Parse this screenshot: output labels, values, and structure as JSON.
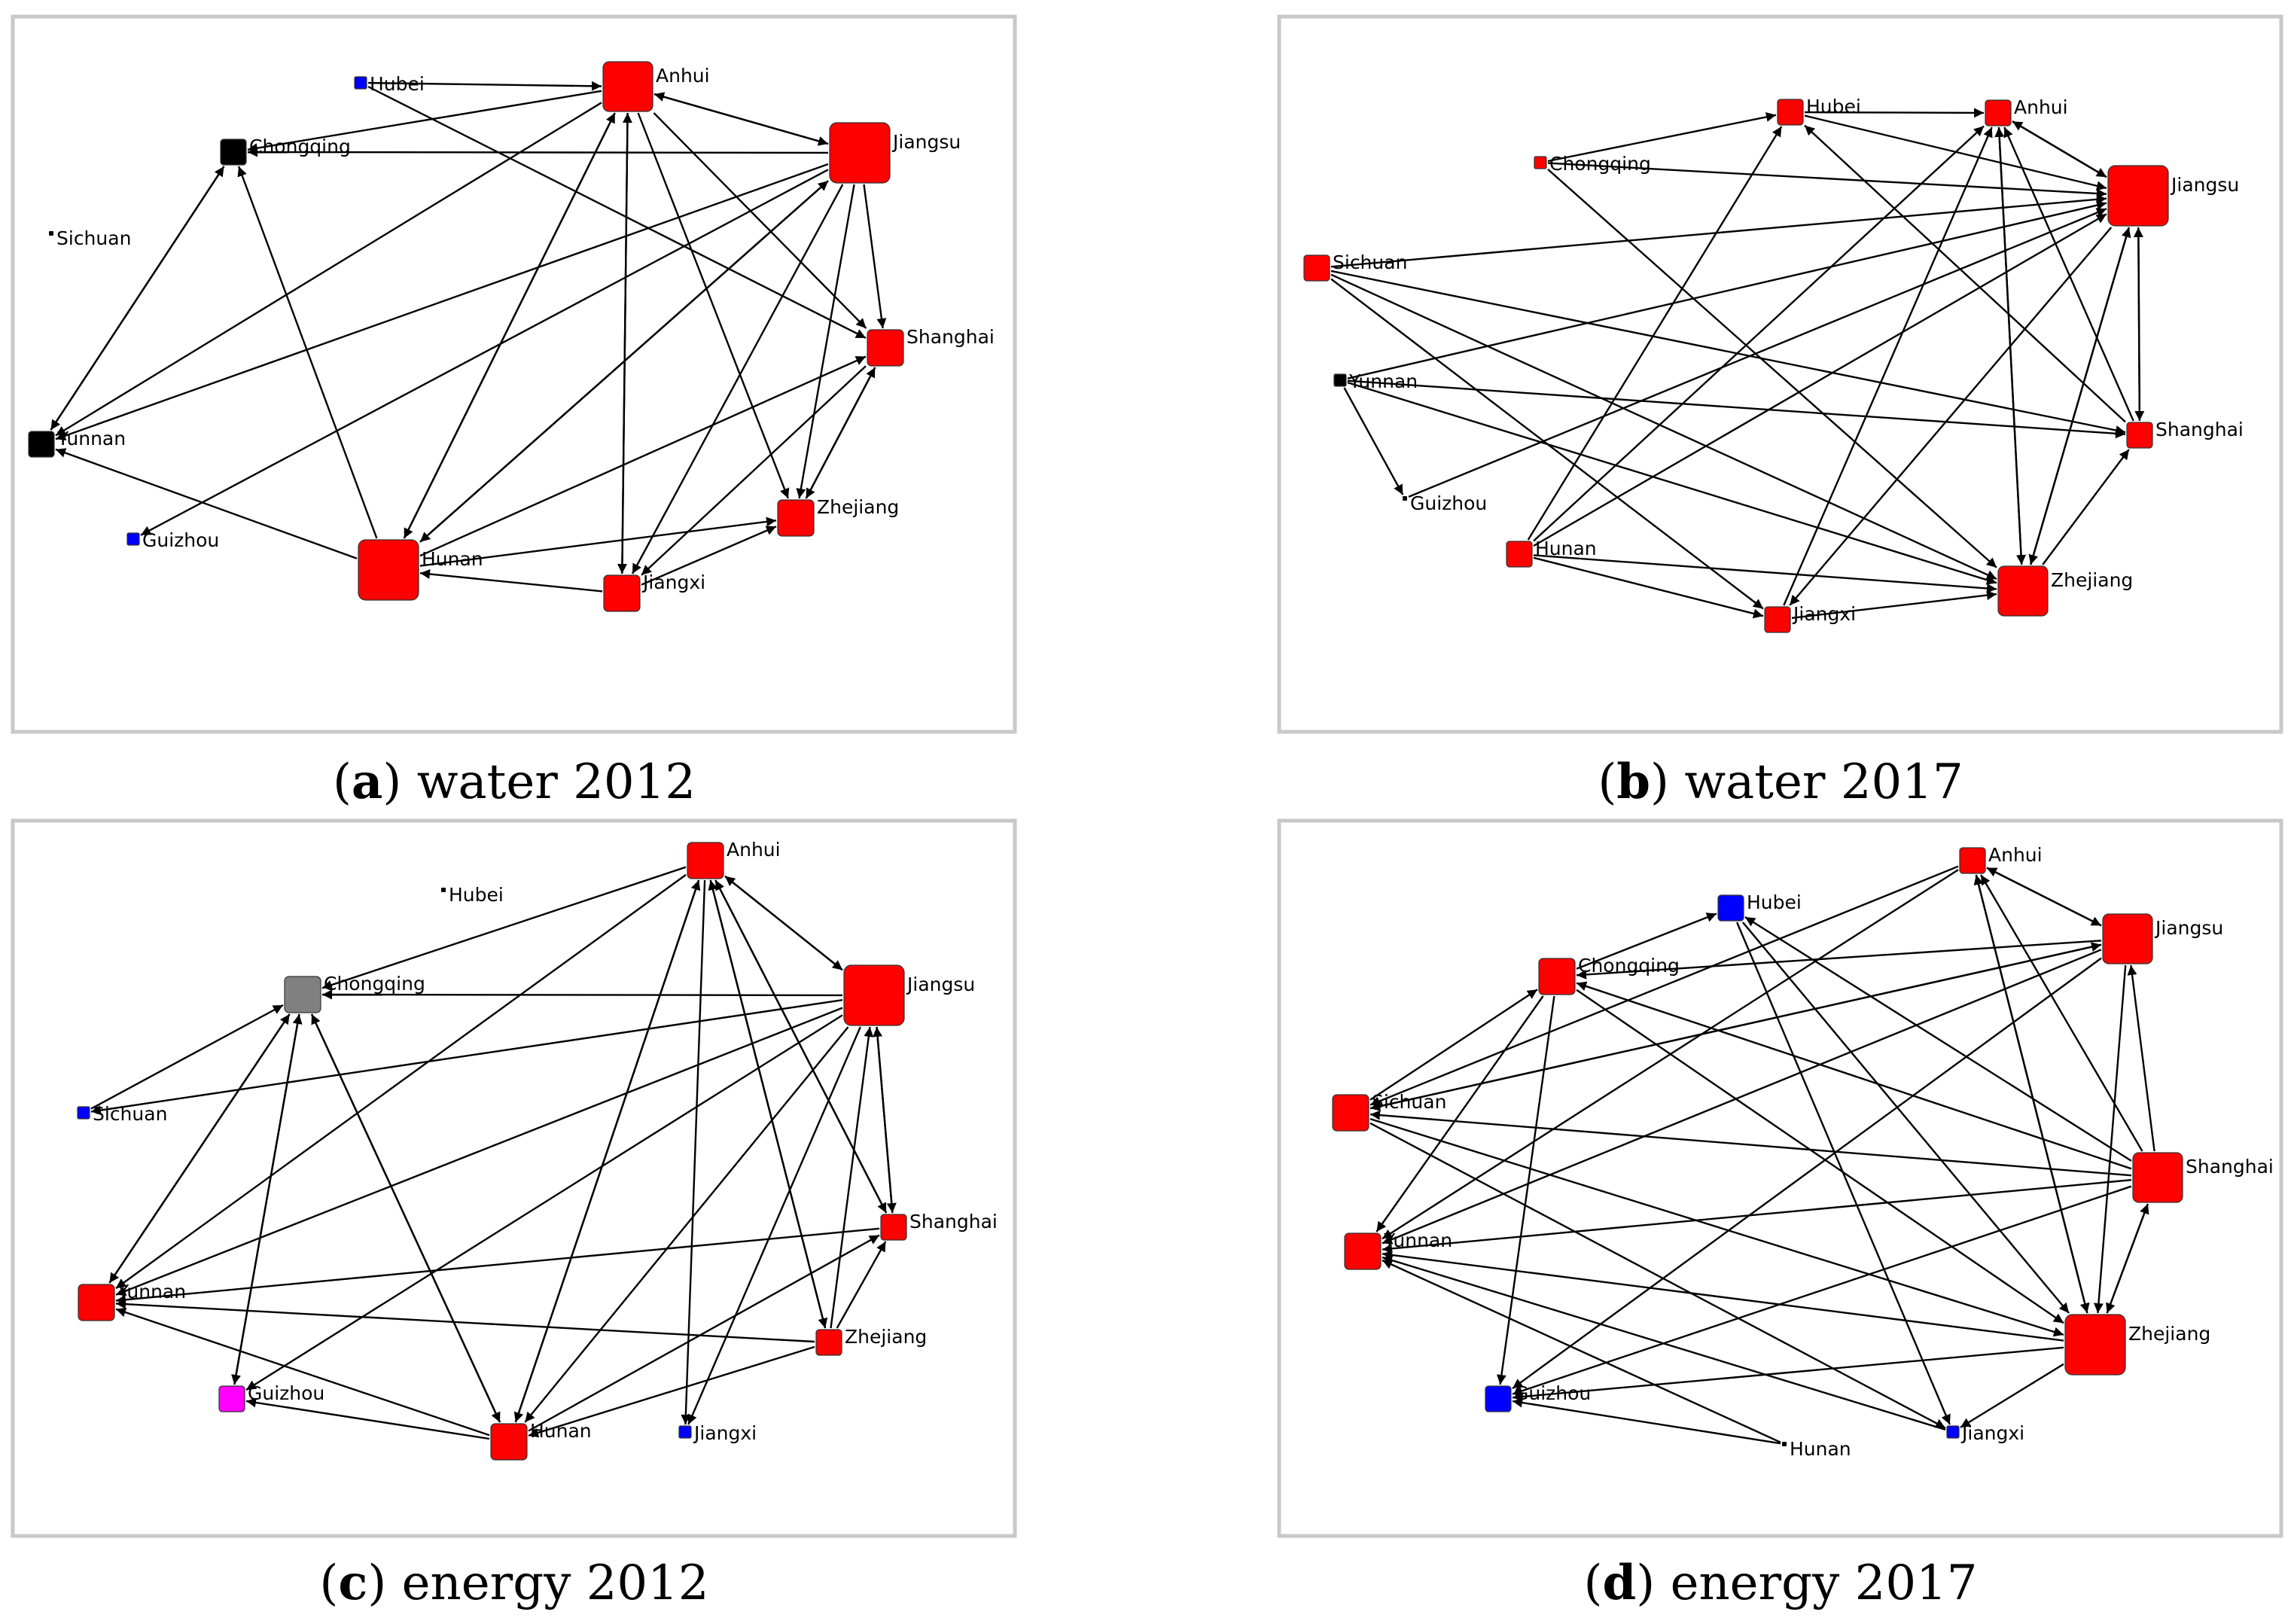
{
  "panels": [
    {
      "letter": "a",
      "caption": "water 2012",
      "nodes": [
        {
          "id": "Anhui",
          "label": "Anhui",
          "color": "#ff0000",
          "size": "L"
        },
        {
          "id": "Jiangsu",
          "label": "Jiangsu",
          "color": "#ff0000",
          "size": "XL"
        },
        {
          "id": "Shanghai",
          "label": "Shanghai",
          "color": "#ff0000",
          "size": "M"
        },
        {
          "id": "Zhejiang",
          "label": "Zhejiang",
          "color": "#ff0000",
          "size": "M"
        },
        {
          "id": "Jiangxi",
          "label": "Jiangxi",
          "color": "#ff0000",
          "size": "M"
        },
        {
          "id": "Hunan",
          "label": "Hunan",
          "color": "#ff0000",
          "size": "XL"
        },
        {
          "id": "Guizhou",
          "label": "Guizhou",
          "color": "#0000ff",
          "size": "XS"
        },
        {
          "id": "Yunnan",
          "label": "Yunnan",
          "color": "#000000",
          "size": "S"
        },
        {
          "id": "Sichuan",
          "label": "Sichuan",
          "color": "#000000",
          "size": "XXS"
        },
        {
          "id": "Chongqing",
          "label": "Chongqing",
          "color": "#000000",
          "size": "S"
        },
        {
          "id": "Hubei",
          "label": "Hubei",
          "color": "#0000ff",
          "size": "XS"
        }
      ],
      "edges": [
        [
          "Hubei",
          "Anhui"
        ],
        [
          "Hubei",
          "Shanghai"
        ],
        [
          "Anhui",
          "Jiangsu"
        ],
        [
          "Jiangsu",
          "Anhui"
        ],
        [
          "Jiangsu",
          "Chongqing"
        ],
        [
          "Anhui",
          "Chongqing"
        ],
        [
          "Anhui",
          "Jiangxi"
        ],
        [
          "Jiangxi",
          "Anhui"
        ],
        [
          "Anhui",
          "Hunan"
        ],
        [
          "Hunan",
          "Anhui"
        ],
        [
          "Anhui",
          "Shanghai"
        ],
        [
          "Anhui",
          "Zhejiang"
        ],
        [
          "Anhui",
          "Yunnan"
        ],
        [
          "Jiangsu",
          "Shanghai"
        ],
        [
          "Jiangsu",
          "Zhejiang"
        ],
        [
          "Jiangsu",
          "Hunan"
        ],
        [
          "Hunan",
          "Jiangsu"
        ],
        [
          "Jiangsu",
          "Yunnan"
        ],
        [
          "Jiangsu",
          "Guizhou"
        ],
        [
          "Jiangsu",
          "Jiangxi"
        ],
        [
          "Shanghai",
          "Jiangxi"
        ],
        [
          "Zhejiang",
          "Shanghai"
        ],
        [
          "Hunan",
          "Zhejiang"
        ],
        [
          "Hunan",
          "Shanghai"
        ],
        [
          "Jiangxi",
          "Zhejiang"
        ],
        [
          "Jiangxi",
          "Hunan"
        ],
        [
          "Hunan",
          "Yunnan"
        ],
        [
          "Hunan",
          "Chongqing"
        ],
        [
          "Yunnan",
          "Chongqing"
        ],
        [
          "Chongqing",
          "Yunnan"
        ],
        [
          "Shanghai",
          "Zhejiang"
        ]
      ]
    },
    {
      "letter": "b",
      "caption": "water 2017",
      "nodes": [
        {
          "id": "Anhui",
          "label": "Anhui",
          "color": "#ff0000",
          "size": "S"
        },
        {
          "id": "Jiangsu",
          "label": "Jiangsu",
          "color": "#ff0000",
          "size": "XL"
        },
        {
          "id": "Shanghai",
          "label": "Shanghai",
          "color": "#ff0000",
          "size": "S"
        },
        {
          "id": "Zhejiang",
          "label": "Zhejiang",
          "color": "#ff0000",
          "size": "L"
        },
        {
          "id": "Jiangxi",
          "label": "Jiangxi",
          "color": "#ff0000",
          "size": "S"
        },
        {
          "id": "Hunan",
          "label": "Hunan",
          "color": "#ff0000",
          "size": "S"
        },
        {
          "id": "Guizhou",
          "label": "Guizhou",
          "color": "#000000",
          "size": "XXS"
        },
        {
          "id": "Yunnan",
          "label": "Yunnan",
          "color": "#000000",
          "size": "XS"
        },
        {
          "id": "Sichuan",
          "label": "Sichuan",
          "color": "#ff0000",
          "size": "S"
        },
        {
          "id": "Chongqing",
          "label": "Chongqing",
          "color": "#ff0000",
          "size": "XS"
        },
        {
          "id": "Hubei",
          "label": "Hubei",
          "color": "#ff0000",
          "size": "S"
        }
      ],
      "edges": [
        [
          "Hubei",
          "Anhui"
        ],
        [
          "Chongqing",
          "Hubei"
        ],
        [
          "Chongqing",
          "Jiangsu"
        ],
        [
          "Chongqing",
          "Zhejiang"
        ],
        [
          "Hubei",
          "Jiangsu"
        ],
        [
          "Anhui",
          "Jiangsu"
        ],
        [
          "Jiangsu",
          "Anhui"
        ],
        [
          "Sichuan",
          "Jiangsu"
        ],
        [
          "Sichuan",
          "Zhejiang"
        ],
        [
          "Sichuan",
          "Jiangxi"
        ],
        [
          "Sichuan",
          "Shanghai"
        ],
        [
          "Yunnan",
          "Guizhou"
        ],
        [
          "Yunnan",
          "Jiangsu"
        ],
        [
          "Yunnan",
          "Zhejiang"
        ],
        [
          "Yunnan",
          "Shanghai"
        ],
        [
          "Hunan",
          "Hubei"
        ],
        [
          "Hunan",
          "Anhui"
        ],
        [
          "Hunan",
          "Jiangsu"
        ],
        [
          "Hunan",
          "Zhejiang"
        ],
        [
          "Hunan",
          "Jiangxi"
        ],
        [
          "Jiangxi",
          "Zhejiang"
        ],
        [
          "Jiangxi",
          "Anhui"
        ],
        [
          "Jiangsu",
          "Jiangxi"
        ],
        [
          "Anhui",
          "Zhejiang"
        ],
        [
          "Zhejiang",
          "Anhui"
        ],
        [
          "Shanghai",
          "Anhui"
        ],
        [
          "Shanghai",
          "Hubei"
        ],
        [
          "Jiangsu",
          "Shanghai"
        ],
        [
          "Shanghai",
          "Jiangsu"
        ],
        [
          "Zhejiang",
          "Shanghai"
        ],
        [
          "Zhejiang",
          "Jiangsu"
        ],
        [
          "Jiangsu",
          "Zhejiang"
        ],
        [
          "Guizhou",
          "Jiangsu"
        ]
      ]
    },
    {
      "letter": "c",
      "caption": "energy 2012",
      "nodes": [
        {
          "id": "Anhui",
          "label": "Anhui",
          "color": "#ff0000",
          "size": "M"
        },
        {
          "id": "Jiangsu",
          "label": "Jiangsu",
          "color": "#ff0000",
          "size": "XL"
        },
        {
          "id": "Shanghai",
          "label": "Shanghai",
          "color": "#ff0000",
          "size": "S"
        },
        {
          "id": "Zhejiang",
          "label": "Zhejiang",
          "color": "#ff0000",
          "size": "S"
        },
        {
          "id": "Jiangxi",
          "label": "Jiangxi",
          "color": "#0000ff",
          "size": "XS"
        },
        {
          "id": "Hunan",
          "label": "Hunan",
          "color": "#ff0000",
          "size": "M"
        },
        {
          "id": "Guizhou",
          "label": "Guizhou",
          "color": "#ff00ff",
          "size": "S"
        },
        {
          "id": "Yunnan",
          "label": "Yunnan",
          "color": "#ff0000",
          "size": "M"
        },
        {
          "id": "Sichuan",
          "label": "Sichuan",
          "color": "#0000ff",
          "size": "XS"
        },
        {
          "id": "Chongqing",
          "label": "Chongqing",
          "color": "#808080",
          "size": "M"
        },
        {
          "id": "Hubei",
          "label": "Hubei",
          "color": "#000000",
          "size": "XXS"
        }
      ],
      "edges": [
        [
          "Anhui",
          "Chongqing"
        ],
        [
          "Anhui",
          "Jiangsu"
        ],
        [
          "Jiangsu",
          "Anhui"
        ],
        [
          "Jiangsu",
          "Chongqing"
        ],
        [
          "Sichuan",
          "Chongqing"
        ],
        [
          "Chongqing",
          "Yunnan"
        ],
        [
          "Yunnan",
          "Chongqing"
        ],
        [
          "Chongqing",
          "Guizhou"
        ],
        [
          "Guizhou",
          "Chongqing"
        ],
        [
          "Chongqing",
          "Hunan"
        ],
        [
          "Hunan",
          "Chongqing"
        ],
        [
          "Anhui",
          "Yunnan"
        ],
        [
          "Anhui",
          "Hunan"
        ],
        [
          "Hunan",
          "Anhui"
        ],
        [
          "Anhui",
          "Jiangxi"
        ],
        [
          "Anhui",
          "Zhejiang"
        ],
        [
          "Zhejiang",
          "Anhui"
        ],
        [
          "Anhui",
          "Shanghai"
        ],
        [
          "Shanghai",
          "Anhui"
        ],
        [
          "Jiangsu",
          "Sichuan"
        ],
        [
          "Jiangsu",
          "Yunnan"
        ],
        [
          "Jiangsu",
          "Guizhou"
        ],
        [
          "Jiangsu",
          "Hunan"
        ],
        [
          "Jiangsu",
          "Jiangxi"
        ],
        [
          "Jiangsu",
          "Shanghai"
        ],
        [
          "Shanghai",
          "Jiangsu"
        ],
        [
          "Zhejiang",
          "Jiangsu"
        ],
        [
          "Shanghai",
          "Yunnan"
        ],
        [
          "Zhejiang",
          "Yunnan"
        ],
        [
          "Zhejiang",
          "Shanghai"
        ],
        [
          "Hunan",
          "Shanghai"
        ],
        [
          "Hunan",
          "Guizhou"
        ],
        [
          "Hunan",
          "Yunnan"
        ],
        [
          "Zhejiang",
          "Hunan"
        ]
      ]
    },
    {
      "letter": "d",
      "caption": "energy 2017",
      "nodes": [
        {
          "id": "Anhui",
          "label": "Anhui",
          "color": "#ff0000",
          "size": "S"
        },
        {
          "id": "Jiangsu",
          "label": "Jiangsu",
          "color": "#ff0000",
          "size": "L"
        },
        {
          "id": "Shanghai",
          "label": "Shanghai",
          "color": "#ff0000",
          "size": "L"
        },
        {
          "id": "Zhejiang",
          "label": "Zhejiang",
          "color": "#ff0000",
          "size": "XL"
        },
        {
          "id": "Jiangxi",
          "label": "Jiangxi",
          "color": "#0000ff",
          "size": "XS"
        },
        {
          "id": "Hunan",
          "label": "Hunan",
          "color": "#000000",
          "size": "XXS"
        },
        {
          "id": "Guizhou",
          "label": "Guizhou",
          "color": "#0000ff",
          "size": "S"
        },
        {
          "id": "Yunnan",
          "label": "Yunnan",
          "color": "#ff0000",
          "size": "M"
        },
        {
          "id": "Sichuan",
          "label": "Sichuan",
          "color": "#ff0000",
          "size": "M"
        },
        {
          "id": "Chongqing",
          "label": "Chongqing",
          "color": "#ff0000",
          "size": "M"
        },
        {
          "id": "Hubei",
          "label": "Hubei",
          "color": "#0000ff",
          "size": "S"
        }
      ],
      "edges": [
        [
          "Chongqing",
          "Hubei"
        ],
        [
          "Hubei",
          "Zhejiang"
        ],
        [
          "Hubei",
          "Jiangxi"
        ],
        [
          "Anhui",
          "Jiangsu"
        ],
        [
          "Jiangsu",
          "Anhui"
        ],
        [
          "Anhui",
          "Sichuan"
        ],
        [
          "Anhui",
          "Yunnan"
        ],
        [
          "Anhui",
          "Zhejiang"
        ],
        [
          "Zhejiang",
          "Anhui"
        ],
        [
          "Shanghai",
          "Anhui"
        ],
        [
          "Jiangsu",
          "Chongqing"
        ],
        [
          "Jiangsu",
          "Sichuan"
        ],
        [
          "Jiangsu",
          "Yunnan"
        ],
        [
          "Jiangsu",
          "Guizhou"
        ],
        [
          "Jiangsu",
          "Zhejiang"
        ],
        [
          "Shanghai",
          "Jiangsu"
        ],
        [
          "Shanghai",
          "Hubei"
        ],
        [
          "Shanghai",
          "Chongqing"
        ],
        [
          "Shanghai",
          "Sichuan"
        ],
        [
          "Shanghai",
          "Yunnan"
        ],
        [
          "Shanghai",
          "Zhejiang"
        ],
        [
          "Zhejiang",
          "Shanghai"
        ],
        [
          "Shanghai",
          "Guizhou"
        ],
        [
          "Chongqing",
          "Yunnan"
        ],
        [
          "Chongqing",
          "Guizhou"
        ],
        [
          "Chongqing",
          "Zhejiang"
        ],
        [
          "Sichuan",
          "Chongqing"
        ],
        [
          "Sichuan",
          "Zhejiang"
        ],
        [
          "Sichuan",
          "Jiangxi"
        ],
        [
          "Zhejiang",
          "Yunnan"
        ],
        [
          "Zhejiang",
          "Guizhou"
        ],
        [
          "Zhejiang",
          "Jiangxi"
        ],
        [
          "Hunan",
          "Yunnan"
        ],
        [
          "Jiangxi",
          "Yunnan"
        ],
        [
          "Hunan",
          "Guizhou"
        ],
        [
          "Sichuan",
          "Jiangsu"
        ]
      ]
    }
  ]
}
